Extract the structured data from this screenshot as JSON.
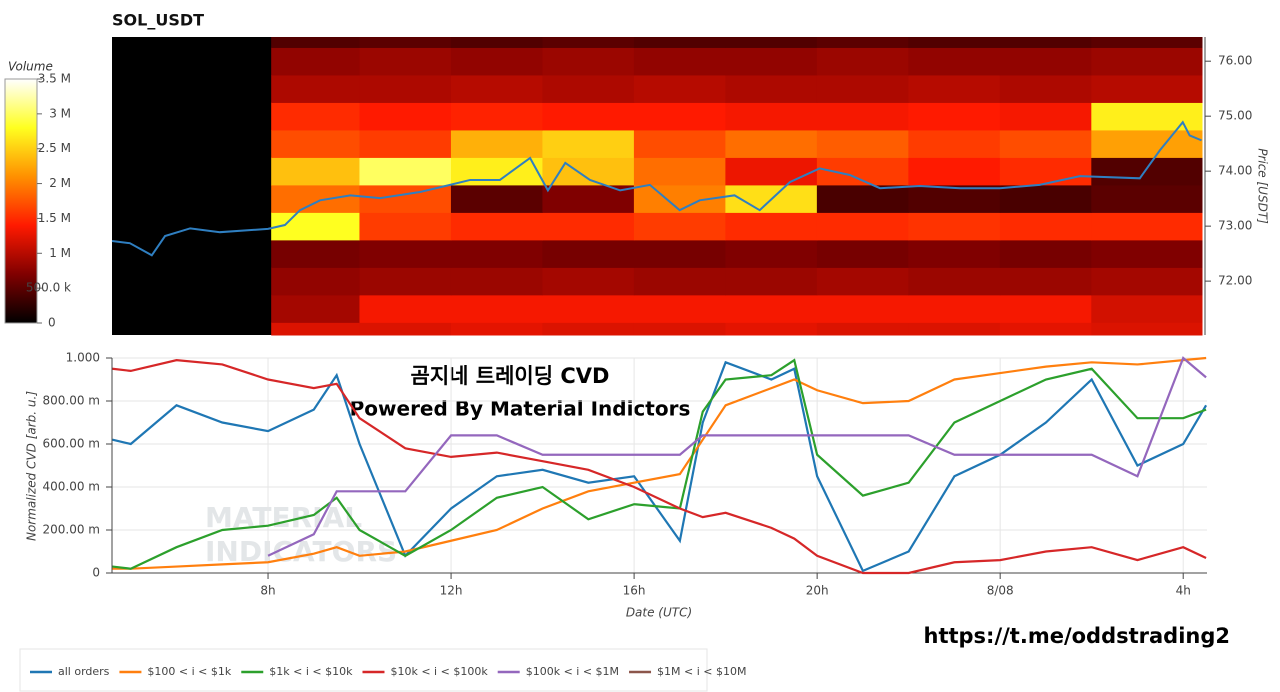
{
  "chart_data": [
    {
      "type": "heatmap",
      "title": "SOL_USDT",
      "ylabel": "Price [USDT]",
      "xlim": [
        4.59,
        28.42
      ],
      "ylim": [
        71.02,
        76.44
      ],
      "yticks": [
        {
          "value": 72,
          "label": "72.00"
        },
        {
          "value": 73,
          "label": "73.00"
        },
        {
          "value": 74,
          "label": "74.00"
        },
        {
          "value": 75,
          "label": "75.00"
        },
        {
          "value": 76,
          "label": "76.00"
        }
      ],
      "x_edges": [
        8.07,
        10,
        12,
        14,
        16,
        18,
        20,
        22,
        24,
        26,
        28.42
      ],
      "y_edges": [
        71.02,
        71.25,
        71.75,
        72.25,
        72.75,
        73.25,
        73.75,
        74.25,
        74.75,
        75.25,
        75.75,
        76.25,
        76.44
      ],
      "z": [
        [
          1200000,
          1200000,
          1250000,
          1200000,
          1200000,
          1250000,
          1200000,
          1200000,
          1250000,
          1200000
        ],
        [
          900000,
          1350000,
          1350000,
          1350000,
          1350000,
          1350000,
          1350000,
          1350000,
          1350000,
          1150000
        ],
        [
          800000,
          850000,
          850000,
          900000,
          850000,
          850000,
          900000,
          850000,
          850000,
          900000
        ],
        [
          650000,
          700000,
          700000,
          650000,
          650000,
          700000,
          650000,
          700000,
          650000,
          700000
        ],
        [
          2800000,
          1600000,
          1500000,
          1500000,
          1600000,
          1500000,
          1500000,
          1550000,
          1500000,
          1500000
        ],
        [
          1900000,
          1700000,
          500000,
          700000,
          2000000,
          2600000,
          400000,
          450000,
          400000,
          500000
        ],
        [
          2400000,
          3000000,
          2700000,
          2400000,
          1900000,
          1300000,
          1600000,
          1400000,
          1500000,
          450000
        ],
        [
          1700000,
          1600000,
          2300000,
          2500000,
          1700000,
          1900000,
          1800000,
          1600000,
          1700000,
          2200000
        ],
        [
          1500000,
          1400000,
          1450000,
          1400000,
          1400000,
          1350000,
          1350000,
          1400000,
          1350000,
          2700000
        ],
        [
          950000,
          950000,
          1000000,
          950000,
          1000000,
          950000,
          950000,
          1000000,
          950000,
          1000000
        ],
        [
          800000,
          850000,
          800000,
          850000,
          800000,
          800000,
          850000,
          800000,
          800000,
          850000
        ],
        [
          450000,
          500000,
          450000,
          500000,
          450000,
          450000,
          500000,
          450000,
          450000,
          500000
        ]
      ],
      "colorbar_label": "Volume",
      "colorbar_lim": [
        0,
        3500000
      ],
      "colorbar_ticks": [
        0,
        {
          "value": 500000,
          "label": "500.0 k"
        },
        {
          "value": 1000000,
          "label": "1 M"
        },
        {
          "value": 1500000,
          "label": "1.5 M"
        },
        {
          "value": 2000000,
          "label": "2 M"
        },
        {
          "value": 2500000,
          "label": "2.5 M"
        },
        {
          "value": 3000000,
          "label": "3 M"
        },
        {
          "value": 3500000,
          "label": "3.5 M"
        }
      ],
      "colormap": [
        "#000000",
        "#800000",
        "#ff1a00",
        "#ff9000",
        "#ffff20",
        "#ffffff"
      ],
      "series": [
        {
          "color": "#2f7fc1",
          "x": [
            4.59,
            4.98,
            5.46,
            5.75,
            6.3,
            6.95,
            8.0,
            8.37,
            8.7,
            9.14,
            9.8,
            10.45,
            11.32,
            11.98,
            12.42,
            13.07,
            13.73,
            14.12,
            14.5,
            15.04,
            15.7,
            16.35,
            17.0,
            17.44,
            18.2,
            18.75,
            19.41,
            20.06,
            20.72,
            21.38,
            22.25,
            23.13,
            24.0,
            24.87,
            25.75,
            27.06,
            27.5,
            28.0,
            28.15,
            28.41
          ],
          "values": [
            72.73,
            72.69,
            72.47,
            72.82,
            72.96,
            72.89,
            72.95,
            73.02,
            73.29,
            73.47,
            73.56,
            73.51,
            73.62,
            73.75,
            73.84,
            73.84,
            74.24,
            73.65,
            74.15,
            73.84,
            73.65,
            73.75,
            73.29,
            73.47,
            73.56,
            73.29,
            73.8,
            74.05,
            73.93,
            73.69,
            73.73,
            73.69,
            73.69,
            73.75,
            73.91,
            73.87,
            74.38,
            74.89,
            74.65,
            74.56
          ]
        }
      ]
    },
    {
      "type": "line",
      "title": "곰지네 트레이딩 CVD",
      "subtitle": "Powered By Material Indictors",
      "xlabel": "Date (UTC)",
      "ylabel": "Normalized CVD [arb. u.]",
      "watermark": [
        "MATERIAL",
        "INDICATORS"
      ],
      "xlim": [
        4.59,
        28.52
      ],
      "ylim": [
        0,
        1
      ],
      "xticks": [
        {
          "value": 8,
          "label": "8h"
        },
        {
          "value": 12,
          "label": "12h"
        },
        {
          "value": 16,
          "label": "16h"
        },
        {
          "value": 20,
          "label": "20h"
        },
        {
          "value": 24,
          "label": "8/08"
        },
        {
          "value": 28,
          "label": "4h"
        }
      ],
      "yticks": [
        0,
        {
          "value": 0.2,
          "label": "200.00 m"
        },
        {
          "value": 0.4,
          "label": "400.00 m"
        },
        {
          "value": 0.6,
          "label": "600.00 m"
        },
        {
          "value": 0.8,
          "label": "800.00 m"
        },
        {
          "value": 1,
          "label": "1.000"
        }
      ],
      "grid": true,
      "x": [
        4.6,
        5,
        6,
        7,
        8,
        9,
        9.5,
        10,
        11,
        12,
        13,
        14,
        15,
        16,
        17,
        17.5,
        18,
        19,
        19.5,
        20,
        21,
        22,
        23,
        24,
        25,
        26,
        27,
        28,
        28.5
      ],
      "series": [
        {
          "name": "all orders",
          "color": "#1f77b4",
          "values": [
            0.62,
            0.6,
            0.78,
            0.7,
            0.66,
            0.76,
            0.92,
            0.6,
            0.08,
            0.3,
            0.45,
            0.48,
            0.42,
            0.45,
            0.15,
            0.7,
            0.98,
            0.9,
            0.95,
            0.45,
            0.01,
            0.1,
            0.45,
            0.55,
            0.7,
            0.9,
            0.5,
            0.6,
            0.78
          ]
        },
        {
          "name": "$100 < i < $1k",
          "color": "#ff7f0e",
          "values": [
            0.02,
            0.02,
            0.03,
            0.04,
            0.05,
            0.09,
            0.12,
            0.08,
            0.1,
            0.15,
            0.2,
            0.3,
            0.38,
            0.42,
            0.46,
            0.62,
            0.78,
            0.86,
            0.9,
            0.85,
            0.79,
            0.8,
            0.9,
            0.93,
            0.96,
            0.98,
            0.97,
            0.99,
            1.0
          ]
        },
        {
          "name": "$1k < i < $10k",
          "color": "#2ca02c",
          "values": [
            0.03,
            0.02,
            0.12,
            0.2,
            0.22,
            0.27,
            0.35,
            0.2,
            0.08,
            0.2,
            0.35,
            0.4,
            0.25,
            0.32,
            0.3,
            0.75,
            0.9,
            0.92,
            0.99,
            0.55,
            0.36,
            0.42,
            0.7,
            0.8,
            0.9,
            0.95,
            0.72,
            0.72,
            0.76
          ]
        },
        {
          "name": "$10k < i < $100k",
          "color": "#d62728",
          "values": [
            0.95,
            0.94,
            0.99,
            0.97,
            0.9,
            0.86,
            0.88,
            0.72,
            0.58,
            0.54,
            0.56,
            0.52,
            0.48,
            0.4,
            0.3,
            0.26,
            0.28,
            0.21,
            0.16,
            0.08,
            0.0,
            0.0,
            0.05,
            0.06,
            0.1,
            0.12,
            0.06,
            0.12,
            0.07
          ]
        },
        {
          "name": "$100k < i < $1M",
          "color": "#9467bd",
          "values": [
            null,
            null,
            null,
            null,
            0.08,
            0.18,
            0.38,
            0.38,
            0.38,
            0.64,
            0.64,
            0.55,
            0.55,
            0.55,
            0.55,
            0.64,
            0.64,
            0.64,
            0.64,
            0.64,
            0.64,
            0.64,
            0.55,
            0.55,
            0.55,
            0.55,
            0.45,
            1.0,
            0.91
          ]
        },
        {
          "name": "$1M < i < $10M",
          "color": "#8c564b",
          "values": [
            null,
            null,
            null,
            null,
            null,
            null,
            null,
            null,
            null,
            null,
            null,
            null,
            null,
            null,
            null,
            null,
            null,
            null,
            null,
            null,
            null,
            null,
            null,
            null,
            null,
            null,
            null,
            null,
            null
          ]
        }
      ]
    }
  ],
  "footer": {
    "link": "https://t.me/oddstrading2"
  }
}
